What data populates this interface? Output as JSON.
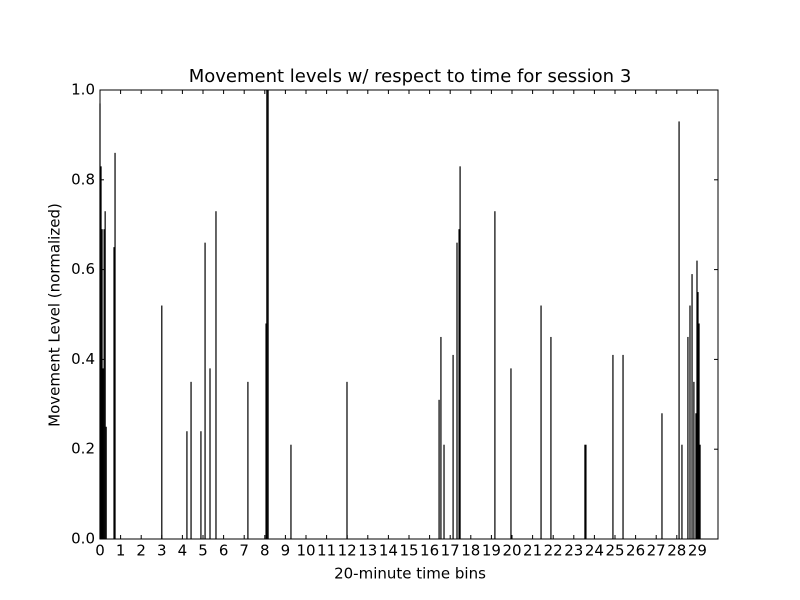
{
  "chart_data": {
    "type": "bar",
    "title": "Movement levels w/ respect to time for session 3",
    "x_label": "20-minute time bins",
    "y_label": "Movement Level (normalized)",
    "color": "#000000",
    "x": [
      0.0,
      0.05,
      0.1,
      0.15,
      0.2,
      0.25,
      0.3,
      0.68,
      0.73,
      3.0,
      4.22,
      4.42,
      4.9,
      5.1,
      5.34,
      5.63,
      7.18,
      8.06,
      8.1,
      8.16,
      9.27,
      11.99,
      16.46,
      16.55,
      16.7,
      17.14,
      17.33,
      17.43,
      17.48,
      19.17,
      19.95,
      21.41,
      21.89,
      23.54,
      23.59,
      24.9,
      25.39,
      27.28,
      28.11,
      28.25,
      28.54,
      28.64,
      28.74,
      28.83,
      28.93,
      28.98,
      29.03,
      29.08,
      29.13
    ],
    "values": [
      0.97,
      0.83,
      0.69,
      0.38,
      0.69,
      0.73,
      0.25,
      0.65,
      0.86,
      0.52,
      0.24,
      0.35,
      0.24,
      0.66,
      0.38,
      0.73,
      0.35,
      0.48,
      1.0,
      1.0,
      0.21,
      0.35,
      0.31,
      0.45,
      0.21,
      0.41,
      0.66,
      0.69,
      0.83,
      0.73,
      0.38,
      0.52,
      0.45,
      0.21,
      0.21,
      0.41,
      0.41,
      0.28,
      0.93,
      0.21,
      0.45,
      0.52,
      0.59,
      0.35,
      0.28,
      0.62,
      0.55,
      0.48,
      0.21
    ],
    "xlim": [
      0,
      30
    ],
    "xticks": [
      0,
      1,
      2,
      3,
      4,
      5,
      6,
      7,
      8,
      9,
      10,
      11,
      12,
      13,
      14,
      15,
      16,
      17,
      18,
      19,
      20,
      21,
      22,
      23,
      24,
      25,
      26,
      27,
      28,
      29
    ],
    "ylim": [
      0,
      1
    ],
    "yticks": [
      {
        "value": 0,
        "label": "0.0"
      },
      0.2,
      0.4,
      0.6,
      0.8,
      {
        "value": 1,
        "label": "1.0"
      }
    ]
  }
}
